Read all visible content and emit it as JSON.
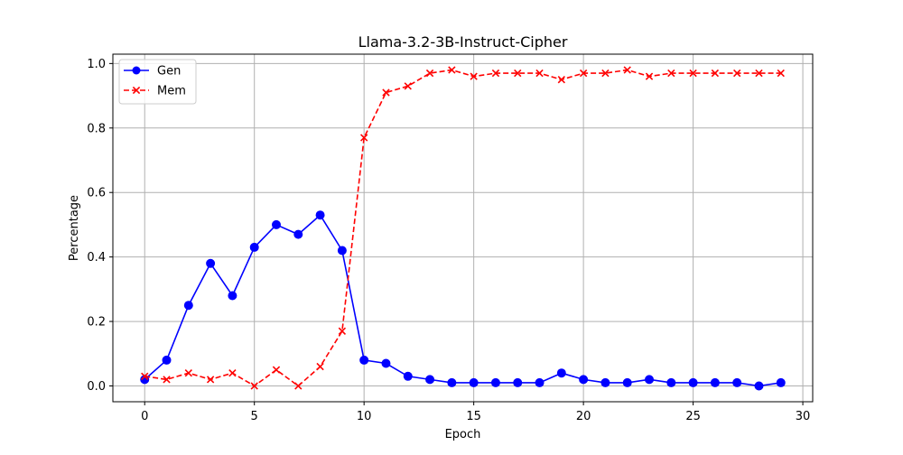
{
  "chart_data": {
    "type": "line",
    "title": "Llama-3.2-3B-Instruct-Cipher",
    "xlabel": "Epoch",
    "ylabel": "Percentage",
    "xlim": [
      -1.45,
      30.45
    ],
    "ylim": [
      -0.049,
      1.029
    ],
    "xticks": [
      0,
      5,
      10,
      15,
      20,
      25,
      30
    ],
    "yticks": [
      0.0,
      0.2,
      0.4,
      0.6,
      0.8,
      1.0
    ],
    "xtick_labels": [
      "0",
      "5",
      "10",
      "15",
      "20",
      "25",
      "30"
    ],
    "ytick_labels": [
      "0.0",
      "0.2",
      "0.4",
      "0.6",
      "0.8",
      "1.0"
    ],
    "grid": true,
    "legend_position": "upper-left",
    "x": [
      0,
      1,
      2,
      3,
      4,
      5,
      6,
      7,
      8,
      9,
      10,
      11,
      12,
      13,
      14,
      15,
      16,
      17,
      18,
      19,
      20,
      21,
      22,
      23,
      24,
      25,
      26,
      27,
      28,
      29
    ],
    "series": [
      {
        "name": "Gen",
        "color": "#0000ff",
        "line_style": "solid",
        "marker": "circle",
        "values": [
          0.02,
          0.08,
          0.25,
          0.38,
          0.28,
          0.43,
          0.5,
          0.47,
          0.53,
          0.42,
          0.08,
          0.07,
          0.03,
          0.02,
          0.01,
          0.01,
          0.01,
          0.01,
          0.01,
          0.04,
          0.02,
          0.01,
          0.01,
          0.02,
          0.01,
          0.01,
          0.01,
          0.01,
          0.0,
          0.01
        ]
      },
      {
        "name": "Mem",
        "color": "#ff0000",
        "line_style": "dashed",
        "marker": "x",
        "values": [
          0.03,
          0.02,
          0.04,
          0.02,
          0.04,
          0.0,
          0.05,
          0.0,
          0.06,
          0.17,
          0.77,
          0.91,
          0.93,
          0.97,
          0.98,
          0.96,
          0.97,
          0.97,
          0.97,
          0.95,
          0.97,
          0.97,
          0.98,
          0.96,
          0.97,
          0.97,
          0.97,
          0.97,
          0.97,
          0.97
        ]
      }
    ]
  }
}
